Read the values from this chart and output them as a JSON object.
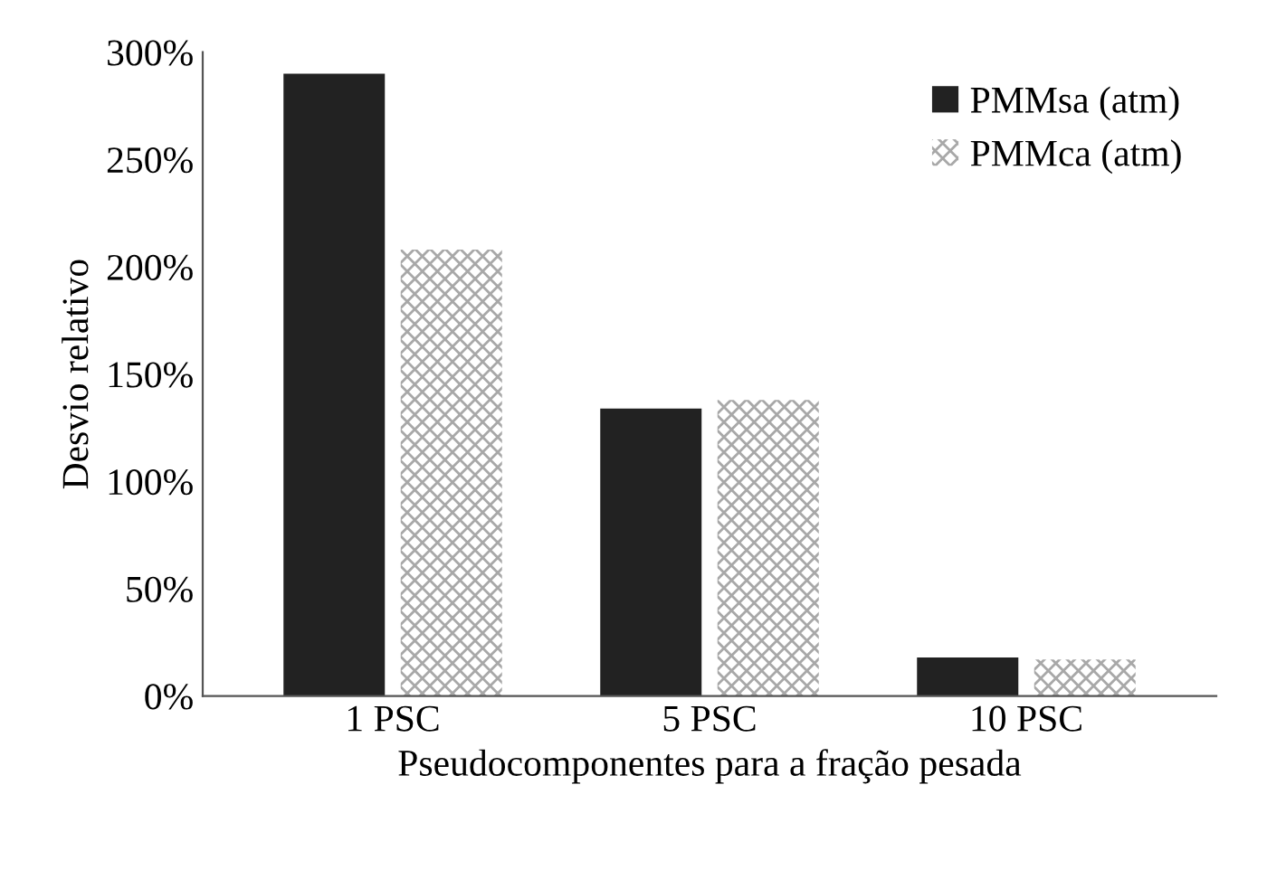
{
  "chart_data": {
    "type": "bar",
    "xlabel": "Pseudocomponentes para a fração pesada",
    "ylabel": "Desvio relativo",
    "categories": [
      "1 PSC",
      "5 PSC",
      "10 PSC"
    ],
    "series": [
      {
        "name": "PMMsa (atm)",
        "color": "#222222",
        "values": [
          290,
          134,
          18
        ]
      },
      {
        "name": "PMMca (atm)",
        "color": "#a8a8a8",
        "values": [
          208,
          138,
          17
        ]
      }
    ],
    "ylim": [
      0,
      300
    ],
    "yticks": [
      {
        "value": 0,
        "label": "0%"
      },
      {
        "value": 50,
        "label": "50%"
      },
      {
        "value": 100,
        "label": "100%"
      },
      {
        "value": 150,
        "label": "150%"
      },
      {
        "value": 200,
        "label": "200%"
      },
      {
        "value": 250,
        "label": "250%"
      },
      {
        "value": 300,
        "label": "300%"
      }
    ],
    "grid": false,
    "legend": "top right"
  }
}
